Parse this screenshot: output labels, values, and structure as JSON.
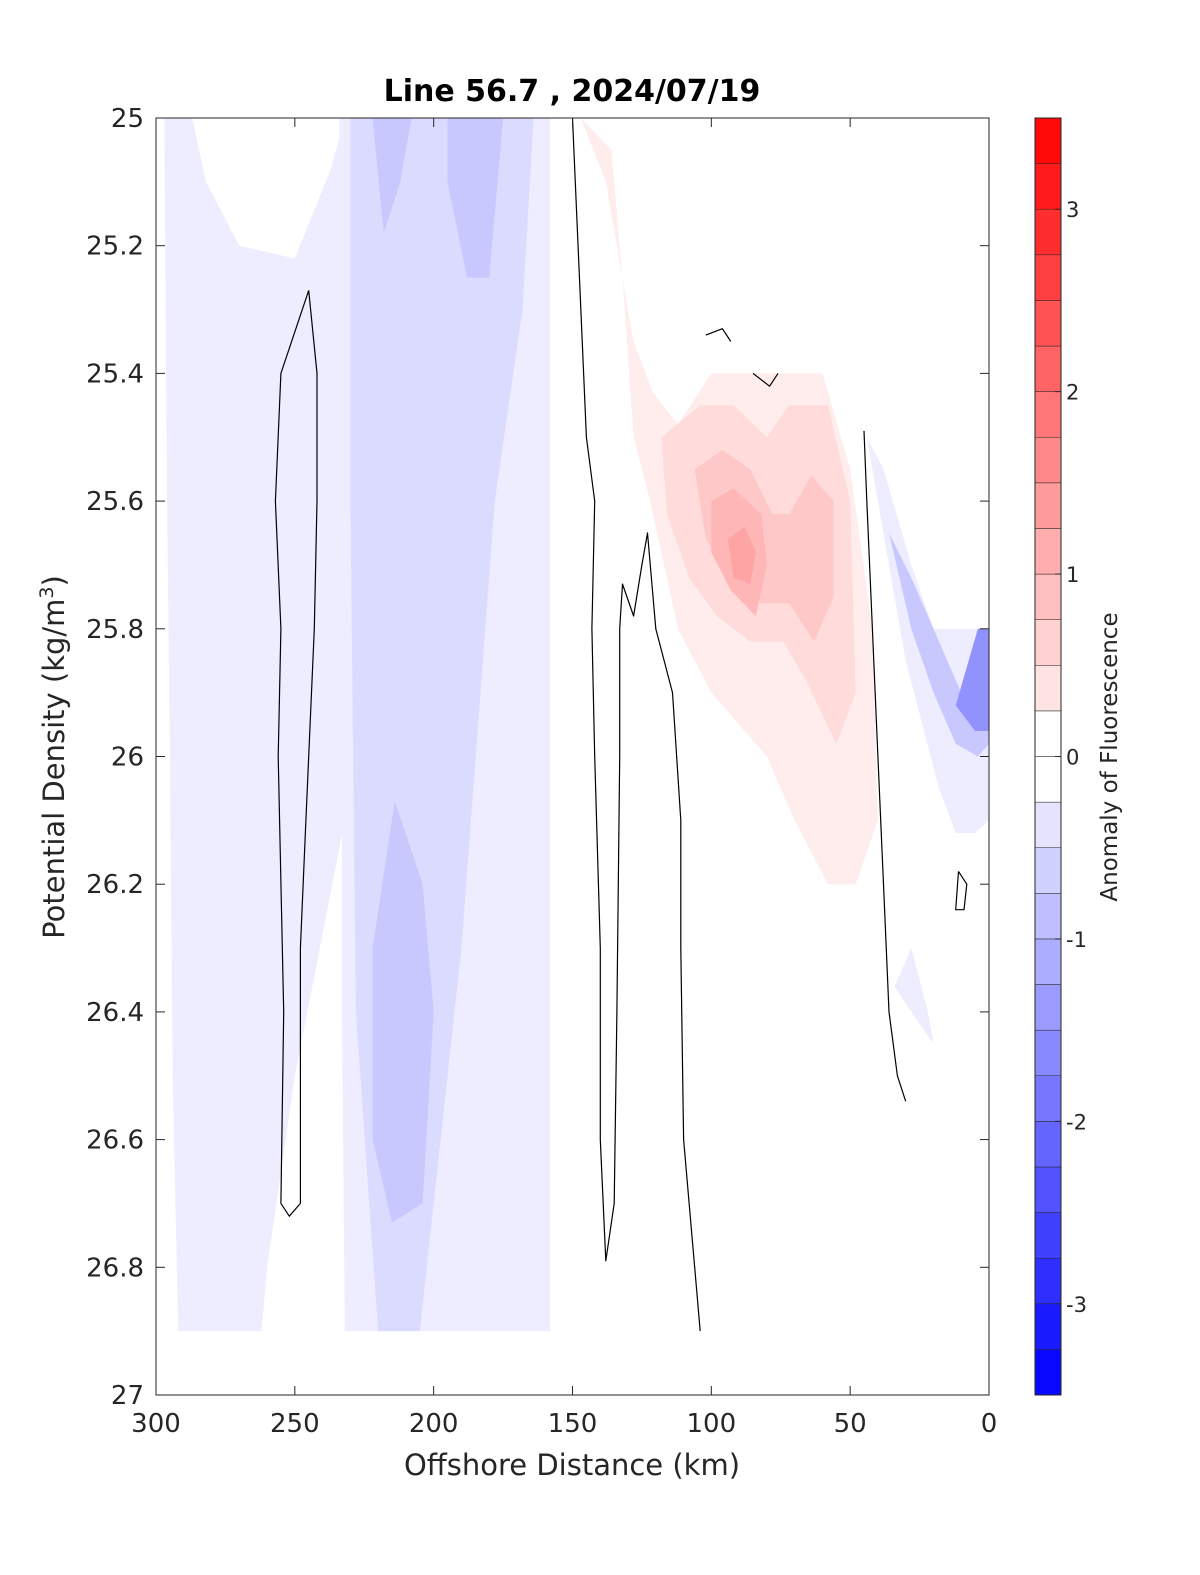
{
  "chart_data": {
    "type": "contour",
    "title": "Line 56.7 , 2024/07/19",
    "xlabel": "Offshore Distance (km)",
    "ylabel_main": "Potential Density (kg/m",
    "ylabel_sup": "3",
    "ylabel_close": ")",
    "xlim": [
      300,
      0
    ],
    "ylim": [
      27,
      25
    ],
    "x_reversed": true,
    "y_reversed": true,
    "x_ticks": [
      300,
      250,
      200,
      150,
      100,
      50,
      0
    ],
    "x_tick_labels": [
      "300",
      "250",
      "200",
      "150",
      "100",
      "50",
      "0"
    ],
    "y_ticks": [
      25,
      25.2,
      25.4,
      25.6,
      25.8,
      26,
      26.2,
      26.4,
      26.6,
      26.8,
      27
    ],
    "y_tick_labels": [
      "25",
      "25.2",
      "25.4",
      "25.6",
      "25.8",
      "26",
      "26.2",
      "26.4",
      "26.6",
      "26.8",
      "27"
    ],
    "colorbar": {
      "label": "Anomaly of Fluorescence",
      "range": [
        -3.5,
        3.5
      ],
      "level_step": 0.25,
      "ticks": [
        3,
        2,
        1,
        0,
        -1,
        -2,
        -3
      ],
      "tick_labels": [
        "3",
        "2",
        "1",
        "0",
        "-1",
        "-2",
        "-3"
      ],
      "colormap": "blue-white-red",
      "neg_color": "#0000ff",
      "zero_color": "#ffffff",
      "pos_color": "#ff0000"
    },
    "zero_contour_color": "#000000",
    "grid": false,
    "regions": [
      {
        "name": "offshore-left-band",
        "level": -0.25,
        "points": [
          [
            297,
            25
          ],
          [
            287,
            25
          ],
          [
            282,
            25.1
          ],
          [
            270,
            25.2
          ],
          [
            250,
            25.22
          ],
          [
            237,
            25.08
          ],
          [
            232,
            25
          ],
          [
            232,
            26.1
          ],
          [
            250,
            26.5
          ],
          [
            260,
            26.8
          ],
          [
            262,
            26.9
          ],
          [
            292,
            26.9
          ],
          [
            294,
            26.5
          ],
          [
            295,
            26
          ],
          [
            296,
            25.6
          ]
        ]
      },
      {
        "name": "central-outer-band",
        "level": -0.25,
        "points": [
          [
            234,
            25
          ],
          [
            158,
            25
          ],
          [
            158,
            26.9
          ],
          [
            232,
            26.9
          ],
          [
            233,
            26.4
          ],
          [
            233,
            25.6
          ]
        ]
      },
      {
        "name": "central-mid-band",
        "level": -0.5,
        "points": [
          [
            230,
            25
          ],
          [
            164,
            25
          ],
          [
            168,
            25.3
          ],
          [
            178,
            25.6
          ],
          [
            190,
            26.3
          ],
          [
            205,
            26.9
          ],
          [
            220,
            26.9
          ],
          [
            228,
            26.4
          ],
          [
            230,
            25.6
          ]
        ]
      },
      {
        "name": "central-core-top-left",
        "level": -0.75,
        "points": [
          [
            222,
            25
          ],
          [
            208,
            25
          ],
          [
            212,
            25.1
          ],
          [
            218,
            25.18
          ]
        ]
      },
      {
        "name": "central-core-top-right",
        "level": -0.75,
        "points": [
          [
            195,
            25
          ],
          [
            175,
            25
          ],
          [
            180,
            25.25
          ],
          [
            188,
            25.25
          ],
          [
            195,
            25.1
          ]
        ]
      },
      {
        "name": "central-core-bottom",
        "level": -0.75,
        "points": [
          [
            214,
            26.07
          ],
          [
            204,
            26.2
          ],
          [
            200,
            26.4
          ],
          [
            204,
            26.7
          ],
          [
            215,
            26.73
          ],
          [
            222,
            26.6
          ],
          [
            222,
            26.3
          ]
        ]
      },
      {
        "name": "positive-anomaly-outer",
        "level": 0.25,
        "points": [
          [
            147,
            25
          ],
          [
            138,
            25.1
          ],
          [
            128,
            25.35
          ],
          [
            121,
            25.43
          ],
          [
            112,
            25.48
          ],
          [
            100,
            25.4
          ],
          [
            60,
            25.4
          ],
          [
            50,
            25.55
          ],
          [
            42,
            25.8
          ],
          [
            40,
            26.1
          ],
          [
            48,
            26.2
          ],
          [
            58,
            26.2
          ],
          [
            70,
            26.1
          ],
          [
            80,
            26
          ],
          [
            90,
            25.95
          ],
          [
            100,
            25.9
          ],
          [
            112,
            25.8
          ],
          [
            122,
            25.6
          ],
          [
            128,
            25.5
          ],
          [
            132,
            25.25
          ],
          [
            136,
            25.05
          ]
        ]
      },
      {
        "name": "positive-anomaly-mid",
        "level": 0.5,
        "points": [
          [
            118,
            25.5
          ],
          [
            104,
            25.45
          ],
          [
            92,
            25.45
          ],
          [
            80,
            25.5
          ],
          [
            72,
            25.45
          ],
          [
            58,
            25.45
          ],
          [
            50,
            25.6
          ],
          [
            48,
            25.9
          ],
          [
            55,
            25.98
          ],
          [
            66,
            25.88
          ],
          [
            74,
            25.82
          ],
          [
            86,
            25.82
          ],
          [
            98,
            25.78
          ],
          [
            108,
            25.72
          ],
          [
            116,
            25.62
          ]
        ]
      },
      {
        "name": "positive-anomaly-inner",
        "level": 0.75,
        "points": [
          [
            106,
            25.55
          ],
          [
            96,
            25.52
          ],
          [
            86,
            25.55
          ],
          [
            78,
            25.62
          ],
          [
            72,
            25.62
          ],
          [
            64,
            25.56
          ],
          [
            56,
            25.6
          ],
          [
            56,
            25.75
          ],
          [
            63,
            25.82
          ],
          [
            72,
            25.76
          ],
          [
            82,
            25.76
          ],
          [
            92,
            25.72
          ],
          [
            102,
            25.66
          ]
        ]
      },
      {
        "name": "positive-anomaly-core",
        "level": 1.0,
        "points": [
          [
            100,
            25.6
          ],
          [
            92,
            25.58
          ],
          [
            82,
            25.62
          ],
          [
            80,
            25.7
          ],
          [
            84,
            25.78
          ],
          [
            93,
            25.74
          ],
          [
            100,
            25.68
          ]
        ]
      },
      {
        "name": "positive-anomaly-peak",
        "level": 1.25,
        "points": [
          [
            94,
            25.66
          ],
          [
            88,
            25.64
          ],
          [
            84,
            25.68
          ],
          [
            86,
            25.73
          ],
          [
            92,
            25.72
          ]
        ]
      },
      {
        "name": "nearshore-negative-outer",
        "level": -0.25,
        "points": [
          [
            44,
            25.5
          ],
          [
            36,
            25.7
          ],
          [
            30,
            25.85
          ],
          [
            24,
            25.95
          ],
          [
            18,
            26.05
          ],
          [
            12,
            26.12
          ],
          [
            5,
            26.12
          ],
          [
            0,
            26.1
          ],
          [
            0,
            25.8
          ],
          [
            20,
            25.8
          ],
          [
            28,
            25.7
          ],
          [
            38,
            25.55
          ]
        ]
      },
      {
        "name": "nearshore-negative-mid",
        "level": -0.75,
        "points": [
          [
            36,
            25.65
          ],
          [
            28,
            25.8
          ],
          [
            20,
            25.9
          ],
          [
            12,
            25.98
          ],
          [
            4,
            26.0
          ],
          [
            0,
            25.98
          ],
          [
            0,
            25.8
          ],
          [
            10,
            25.9
          ],
          [
            20,
            25.8
          ],
          [
            28,
            25.72
          ]
        ]
      },
      {
        "name": "nearshore-negative-core",
        "level": -1.5,
        "points": [
          [
            12,
            25.92
          ],
          [
            5,
            25.96
          ],
          [
            0,
            25.96
          ],
          [
            0,
            25.8
          ],
          [
            4,
            25.8
          ]
        ]
      },
      {
        "name": "nearshore-lower-patch",
        "level": -0.25,
        "points": [
          [
            28,
            26.3
          ],
          [
            22,
            26.4
          ],
          [
            20,
            26.45
          ],
          [
            28,
            26.4
          ],
          [
            34,
            26.36
          ]
        ]
      }
    ],
    "zero_contours": [
      {
        "name": "zero-contour-left-loop",
        "points": [
          [
            245,
            25.27
          ],
          [
            255,
            25.4
          ],
          [
            257,
            25.6
          ],
          [
            255,
            25.8
          ],
          [
            256,
            26
          ],
          [
            254,
            26.4
          ],
          [
            255,
            26.7
          ],
          [
            252,
            26.72
          ],
          [
            248,
            26.7
          ],
          [
            248,
            26.3
          ],
          [
            246,
            26.1
          ],
          [
            243,
            25.8
          ],
          [
            242,
            25.6
          ],
          [
            242,
            25.4
          ],
          [
            245,
            25.27
          ]
        ]
      },
      {
        "name": "zero-contour-offshore-line",
        "points": [
          [
            150,
            25
          ],
          [
            145,
            25.5
          ],
          [
            142,
            25.6
          ],
          [
            143,
            25.8
          ],
          [
            142,
            26
          ],
          [
            140,
            26.3
          ],
          [
            140,
            26.6
          ],
          [
            138,
            26.79
          ],
          [
            135,
            26.7
          ],
          [
            134,
            26.4
          ],
          [
            133,
            26
          ],
          [
            133,
            25.8
          ],
          [
            132,
            25.73
          ],
          [
            128,
            25.78
          ],
          [
            125,
            25.7
          ],
          [
            123,
            25.65
          ],
          [
            120,
            25.8
          ],
          [
            114,
            25.9
          ],
          [
            111,
            26.1
          ],
          [
            111,
            26.3
          ],
          [
            110,
            26.6
          ],
          [
            104,
            26.9
          ]
        ]
      },
      {
        "name": "zero-contour-nearshore-line",
        "points": [
          [
            45,
            25.49
          ],
          [
            44,
            25.6
          ],
          [
            42,
            25.8
          ],
          [
            40,
            26.0
          ],
          [
            38,
            26.2
          ],
          [
            36,
            26.4
          ],
          [
            33,
            26.5
          ],
          [
            30,
            26.54
          ]
        ]
      },
      {
        "name": "zero-contour-small-loop",
        "points": [
          [
            11,
            26.18
          ],
          [
            8,
            26.2
          ],
          [
            9,
            26.24
          ],
          [
            12,
            26.24
          ],
          [
            11,
            26.18
          ]
        ]
      },
      {
        "name": "zero-contour-fragment-a",
        "points": [
          [
            102,
            25.34
          ],
          [
            96,
            25.33
          ],
          [
            93,
            25.35
          ]
        ]
      },
      {
        "name": "zero-contour-fragment-b",
        "points": [
          [
            85,
            25.4
          ],
          [
            79,
            25.42
          ],
          [
            76,
            25.4
          ]
        ]
      }
    ]
  }
}
